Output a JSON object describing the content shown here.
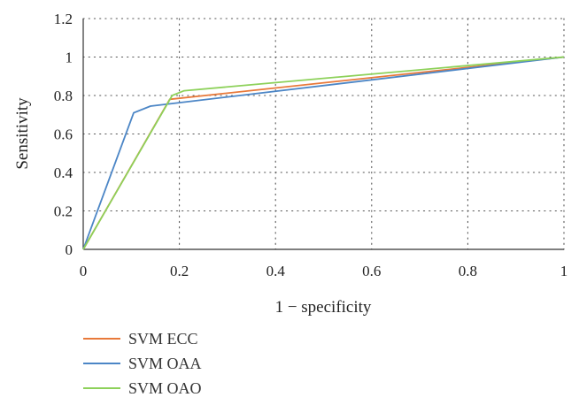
{
  "chart_data": {
    "type": "line",
    "title": "",
    "xlabel": "1 − specificity",
    "ylabel": "Sensitivity",
    "xlim": [
      0,
      1
    ],
    "ylim": [
      0,
      1.2
    ],
    "x_ticks": [
      "0",
      "0.2",
      "0.4",
      "0.6",
      "0.8",
      "1"
    ],
    "y_ticks": [
      "0",
      "0.2",
      "0.4",
      "0.6",
      "0.8",
      "1",
      "1.2"
    ],
    "grid": "dotted",
    "legend_position": "bottom-left",
    "series": [
      {
        "name": "SVM ECC",
        "color": "#E8793A",
        "points": [
          [
            0,
            0
          ],
          [
            0.18,
            0.78
          ],
          [
            1,
            1
          ]
        ]
      },
      {
        "name": "SVM OAA",
        "color": "#4C86C6",
        "points": [
          [
            0,
            0
          ],
          [
            0.105,
            0.71
          ],
          [
            0.14,
            0.745
          ],
          [
            1,
            1
          ]
        ]
      },
      {
        "name": "SVM OAO",
        "color": "#8DD15A",
        "points": [
          [
            0,
            0
          ],
          [
            0.185,
            0.8
          ],
          [
            0.21,
            0.825
          ],
          [
            1,
            1
          ]
        ]
      }
    ]
  }
}
